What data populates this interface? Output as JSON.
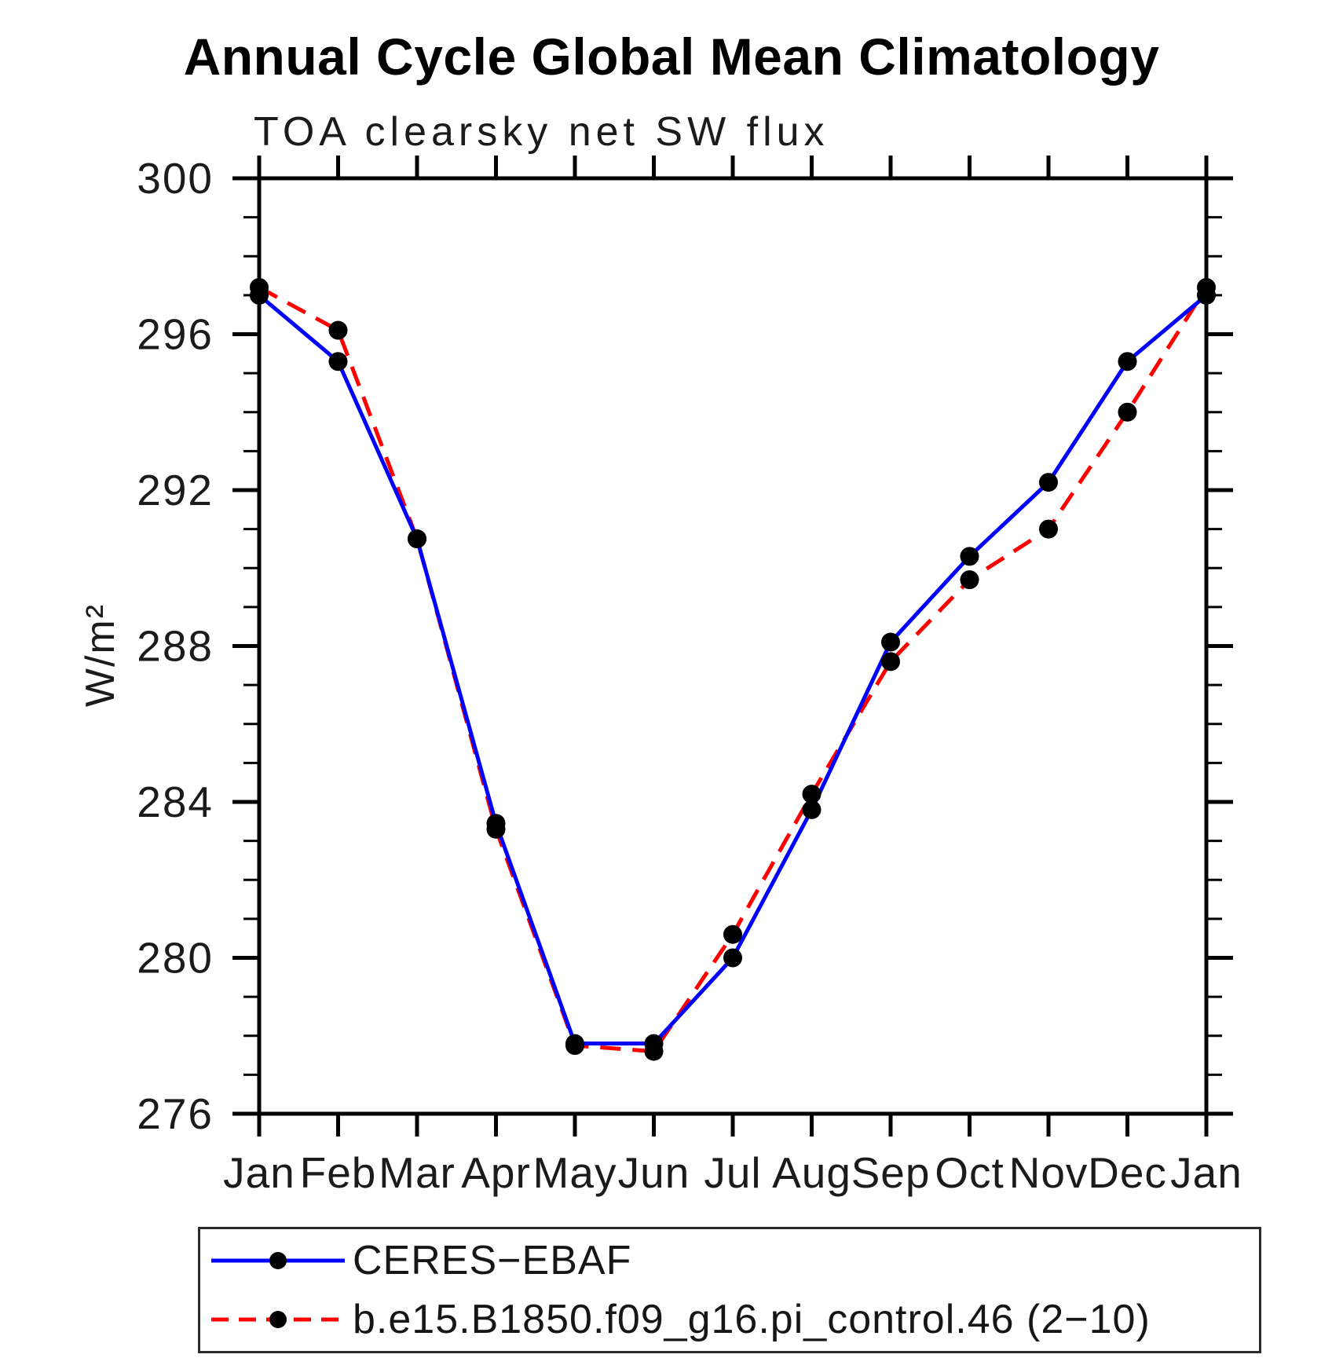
{
  "chart_data": {
    "type": "line",
    "title": "Annual Cycle Global Mean Climatology",
    "subtitle": "TOA clearsky net SW flux",
    "ylabel": "W/m²",
    "xlabel": "",
    "ylim": [
      276,
      300
    ],
    "y_major_step": 4,
    "y_minor_step": 1,
    "y_ticks": [
      276,
      280,
      284,
      288,
      292,
      296,
      300
    ],
    "grid": false,
    "legend_position": "bottom",
    "frame_color": "#000000",
    "categories": [
      "Jan",
      "Feb",
      "Mar",
      "Apr",
      "May",
      "Jun",
      "Jul",
      "Aug",
      "Sep",
      "Oct",
      "Nov",
      "Dec",
      "Jan"
    ],
    "series": [
      {
        "name": "CERES−EBAF",
        "color": "#0000ff",
        "line_style": "solid",
        "marker": "circle",
        "marker_color": "#000000",
        "values": [
          297.0,
          295.3,
          290.75,
          283.45,
          277.8,
          277.8,
          280.0,
          283.8,
          288.1,
          290.3,
          292.2,
          295.3,
          297.0
        ]
      },
      {
        "name": "b.e15.B1850.f09_g16.pi_control.46 (2−10)",
        "color": "#ff0000",
        "line_style": "dashed",
        "marker": "circle",
        "marker_color": "#000000",
        "values": [
          297.2,
          296.1,
          290.75,
          283.3,
          277.75,
          277.6,
          280.6,
          284.2,
          287.6,
          289.7,
          291.0,
          294.0,
          297.2
        ]
      }
    ]
  }
}
